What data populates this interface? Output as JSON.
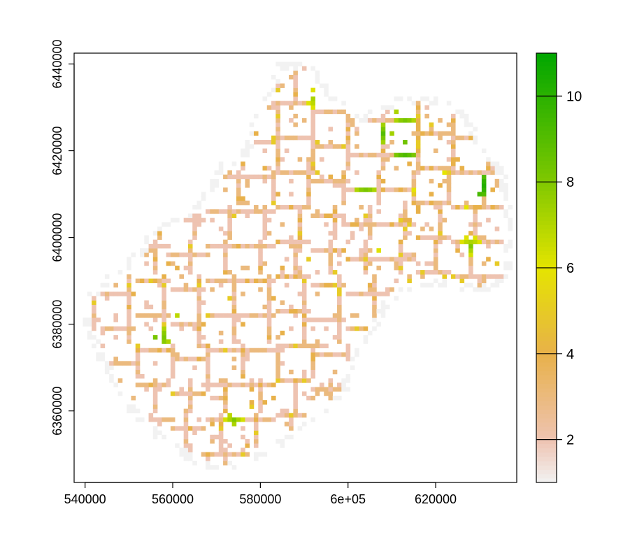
{
  "chart_data": {
    "type": "heatmap",
    "title": "",
    "xlabel": "",
    "ylabel": "",
    "xlim": [
      537500,
      638500
    ],
    "ylim": [
      6343500,
      6442500
    ],
    "x_ticks": [
      540000,
      560000,
      580000,
      600000,
      620000
    ],
    "x_tick_labels": [
      "540000",
      "560000",
      "580000",
      "6e+05",
      "620000"
    ],
    "y_ticks": [
      6360000,
      6380000,
      6400000,
      6420000,
      6440000
    ],
    "y_tick_labels": [
      "6360000",
      "6380000",
      "6400000",
      "6420000",
      "6440000"
    ],
    "cell_size": 1000,
    "value_range": [
      1,
      11
    ],
    "legend_position": "right",
    "legend_ticks": [
      2,
      4,
      6,
      8,
      10
    ],
    "legend_tick_labels": [
      "2",
      "4",
      "6",
      "8",
      "10"
    ],
    "colormap": "terrain (reversed)",
    "color_stops": [
      {
        "value": 1,
        "color": "#f2f2f2"
      },
      {
        "value": 2,
        "color": "#eec3b1"
      },
      {
        "value": 4,
        "color": "#e8b14a"
      },
      {
        "value": 6,
        "color": "#e5e400"
      },
      {
        "value": 8,
        "color": "#80c800"
      },
      {
        "value": 11,
        "color": "#00a600"
      }
    ],
    "region_outline": [
      [
        538000,
        6385000
      ],
      [
        546000,
        6392000
      ],
      [
        552000,
        6397000
      ],
      [
        556000,
        6403000
      ],
      [
        565000,
        6407000
      ],
      [
        569000,
        6413000
      ],
      [
        571000,
        6417000
      ],
      [
        576000,
        6420000
      ],
      [
        578000,
        6428000
      ],
      [
        581000,
        6433000
      ],
      [
        584000,
        6440000
      ],
      [
        591000,
        6441000
      ],
      [
        596000,
        6434000
      ],
      [
        603000,
        6428000
      ],
      [
        610000,
        6432000
      ],
      [
        617000,
        6433000
      ],
      [
        622000,
        6432000
      ],
      [
        627000,
        6429000
      ],
      [
        631000,
        6422000
      ],
      [
        636000,
        6415000
      ],
      [
        638000,
        6403000
      ],
      [
        637000,
        6389000
      ],
      [
        630000,
        6387000
      ],
      [
        622000,
        6389000
      ],
      [
        615000,
        6388000
      ],
      [
        610000,
        6385000
      ],
      [
        606000,
        6378000
      ],
      [
        602000,
        6372000
      ],
      [
        600000,
        6364000
      ],
      [
        596000,
        6360000
      ],
      [
        591000,
        6357000
      ],
      [
        586000,
        6352000
      ],
      [
        577000,
        6348000
      ],
      [
        570000,
        6345000
      ],
      [
        563000,
        6349000
      ],
      [
        556000,
        6354000
      ],
      [
        550000,
        6360000
      ],
      [
        545000,
        6368000
      ],
      [
        541000,
        6376000
      ]
    ],
    "sample_hotspots": [
      {
        "x": 613000,
        "y": 6420000,
        "value": 10
      },
      {
        "x": 630000,
        "y": 6412000,
        "value": 11
      },
      {
        "x": 604000,
        "y": 6412000,
        "value": 9
      },
      {
        "x": 557000,
        "y": 6377000,
        "value": 9
      },
      {
        "x": 593000,
        "y": 6432000,
        "value": 8
      },
      {
        "x": 608000,
        "y": 6424000,
        "value": 9
      },
      {
        "x": 628000,
        "y": 6398000,
        "value": 8
      },
      {
        "x": 562000,
        "y": 6383000,
        "value": 8
      },
      {
        "x": 574000,
        "y": 6358000,
        "value": 8
      },
      {
        "x": 609000,
        "y": 6398000,
        "value": 8
      },
      {
        "x": 613000,
        "y": 6428000,
        "value": 9
      }
    ]
  }
}
